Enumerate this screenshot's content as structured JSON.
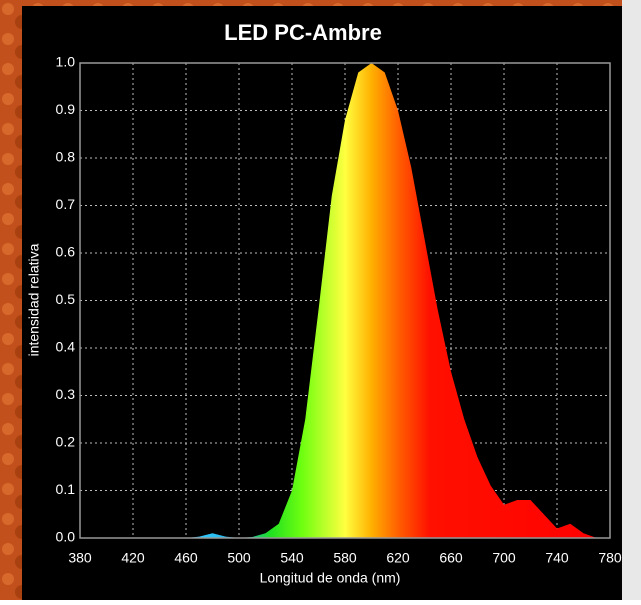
{
  "chart_data": {
    "type": "area",
    "title": "LED PC-Ambre",
    "x_label": "Longitud de onda (nm)",
    "y_label": "intensidad relativa",
    "x": [
      380,
      420,
      460,
      470,
      480,
      490,
      500,
      510,
      520,
      530,
      540,
      550,
      560,
      570,
      580,
      590,
      600,
      610,
      620,
      630,
      640,
      650,
      660,
      670,
      680,
      690,
      700,
      710,
      720,
      730,
      740,
      750,
      760,
      770
    ],
    "values": [
      0,
      0,
      0,
      0.003,
      0.01,
      0.003,
      0,
      0.002,
      0.01,
      0.03,
      0.1,
      0.25,
      0.48,
      0.72,
      0.88,
      0.98,
      1.0,
      0.98,
      0.9,
      0.78,
      0.63,
      0.48,
      0.35,
      0.25,
      0.17,
      0.11,
      0.07,
      0.08,
      0.08,
      0.05,
      0.02,
      0.03,
      0.01,
      0
    ],
    "xlim": [
      380,
      780
    ],
    "ylim": [
      0,
      1
    ],
    "xticks": [
      380,
      420,
      460,
      500,
      540,
      580,
      620,
      660,
      700,
      740,
      780
    ],
    "yticks": [
      {
        "value": 0,
        "label": "0.0"
      },
      0.1,
      0.2,
      0.3,
      0.4,
      0.5,
      0.6,
      0.7,
      0.8,
      0.9,
      {
        "value": 1,
        "label": "1.0"
      }
    ],
    "grid": true
  }
}
